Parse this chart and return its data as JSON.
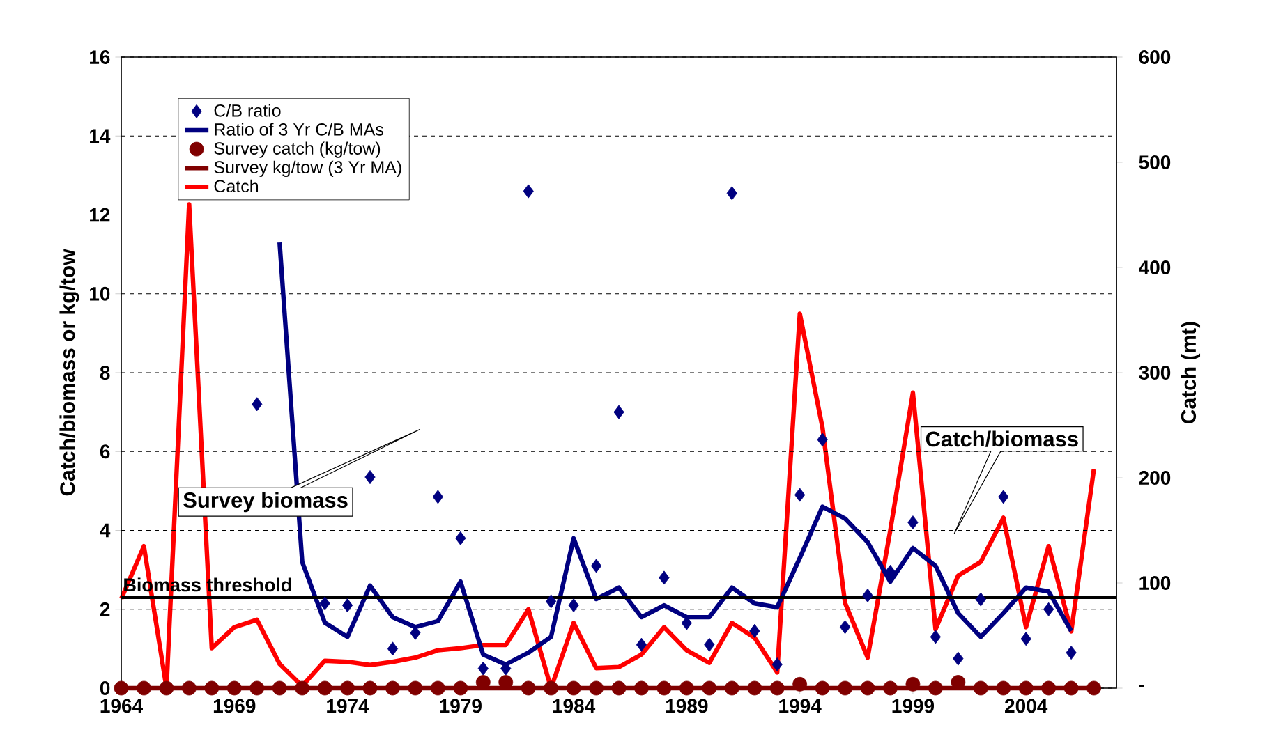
{
  "chart_data": {
    "type": "line",
    "x": [
      1964,
      1965,
      1966,
      1967,
      1968,
      1969,
      1970,
      1971,
      1972,
      1973,
      1974,
      1975,
      1976,
      1977,
      1978,
      1979,
      1980,
      1981,
      1982,
      1983,
      1984,
      1985,
      1986,
      1987,
      1988,
      1989,
      1990,
      1991,
      1992,
      1993,
      1994,
      1995,
      1996,
      1997,
      1998,
      1999,
      2000,
      2001,
      2002,
      2003,
      2004,
      2005,
      2006,
      2007
    ],
    "xlim": [
      1964,
      2008
    ],
    "xticks": [
      1964,
      1969,
      1974,
      1979,
      1984,
      1989,
      1994,
      1999,
      2004
    ],
    "ylim": [
      0,
      16
    ],
    "yticks": [
      0,
      2,
      4,
      6,
      8,
      10,
      12,
      14,
      16
    ],
    "y2lim": [
      0,
      600
    ],
    "y2ticks": [
      {
        "value": 0,
        "label": "-"
      },
      100,
      200,
      300,
      400,
      500,
      600
    ],
    "ylabel": "Catch/biomass or kg/tow",
    "y2label": "Catch (mt)",
    "grid": "y",
    "legend": "top left",
    "series": [
      {
        "name": "C/B ratio",
        "type": "scatter",
        "marker": "diamond",
        "color": "#000080",
        "values": [
          null,
          null,
          null,
          null,
          null,
          null,
          7.2,
          null,
          null,
          2.15,
          2.1,
          5.35,
          1.0,
          1.4,
          4.85,
          3.8,
          0.5,
          0.5,
          12.6,
          2.2,
          2.1,
          3.1,
          7.0,
          1.1,
          2.8,
          1.65,
          1.1,
          12.55,
          1.45,
          0.6,
          4.9,
          6.3,
          1.55,
          2.35,
          2.95,
          4.2,
          1.3,
          0.75,
          2.25,
          4.85,
          1.25,
          2.0,
          0.9,
          null
        ]
      },
      {
        "name": "Ratio of 3 Yr C/B MAs",
        "type": "line",
        "line_style": "solid",
        "color": "#000080",
        "values": [
          null,
          null,
          null,
          null,
          null,
          null,
          null,
          11.3,
          3.2,
          1.66,
          1.3,
          2.6,
          1.8,
          1.55,
          1.7,
          2.7,
          0.85,
          0.6,
          0.9,
          1.3,
          3.8,
          2.26,
          2.55,
          1.8,
          2.1,
          1.8,
          1.8,
          2.55,
          2.15,
          2.05,
          3.3,
          4.6,
          4.3,
          3.7,
          2.7,
          3.55,
          3.1,
          1.9,
          1.3,
          1.9,
          2.55,
          2.45,
          1.45,
          null
        ]
      },
      {
        "name": "Survey catch (kg/tow)",
        "type": "scatter",
        "marker": "circle",
        "color": "#800000",
        "values": [
          0,
          0,
          0,
          0,
          0,
          0,
          0,
          0,
          0,
          0,
          0,
          0,
          0,
          0,
          0,
          0,
          0.15,
          0.15,
          0,
          0,
          0,
          0,
          0,
          0,
          0,
          0,
          0,
          0,
          0,
          0,
          0.1,
          0,
          0,
          0,
          0,
          0.1,
          0,
          0.15,
          0,
          0,
          0,
          0,
          0,
          0
        ]
      },
      {
        "name": "Survey kg/tow (3 Yr MA)",
        "type": "line",
        "line_style": "solid",
        "color": "#800000",
        "values": [
          0,
          0,
          0,
          0,
          0,
          0,
          0,
          0,
          0,
          0,
          0,
          0,
          0,
          0,
          0,
          0,
          0,
          0,
          0,
          0,
          0,
          0,
          0,
          0,
          0,
          0,
          0,
          0,
          0,
          0,
          0,
          0,
          0,
          0,
          0,
          0,
          0,
          0,
          0,
          0,
          0,
          0,
          0,
          0
        ]
      },
      {
        "name": "Catch",
        "type": "line",
        "line_style": "solid",
        "axis": "y2",
        "color": "#ff0000",
        "values": [
          85,
          135,
          0,
          460,
          38,
          58,
          65,
          23,
          2,
          26,
          25,
          22,
          25,
          29,
          36,
          38,
          41,
          41,
          75,
          0,
          62,
          19,
          20,
          32,
          58,
          36,
          24,
          62,
          48,
          15,
          356,
          248,
          81,
          29,
          150,
          281,
          56,
          107,
          120,
          162,
          58,
          135,
          54,
          208
        ]
      }
    ],
    "ref_lines": [
      {
        "axis": "y",
        "value": 2.3,
        "label": "Biomass threshold",
        "color": "#000000"
      }
    ],
    "annotations": [
      "Survey biomass",
      "Catch/biomass"
    ]
  }
}
